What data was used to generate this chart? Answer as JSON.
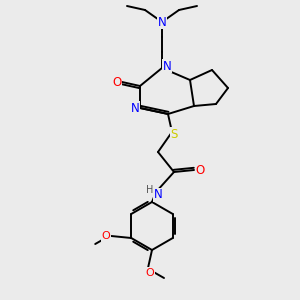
{
  "background_color": "#ebebeb",
  "bond_color": "#000000",
  "atom_colors": {
    "N": "#0000ff",
    "O": "#ff0000",
    "S": "#cccc00",
    "H": "#555555",
    "C": "#000000"
  },
  "figsize": [
    3.0,
    3.0
  ],
  "dpi": 100
}
